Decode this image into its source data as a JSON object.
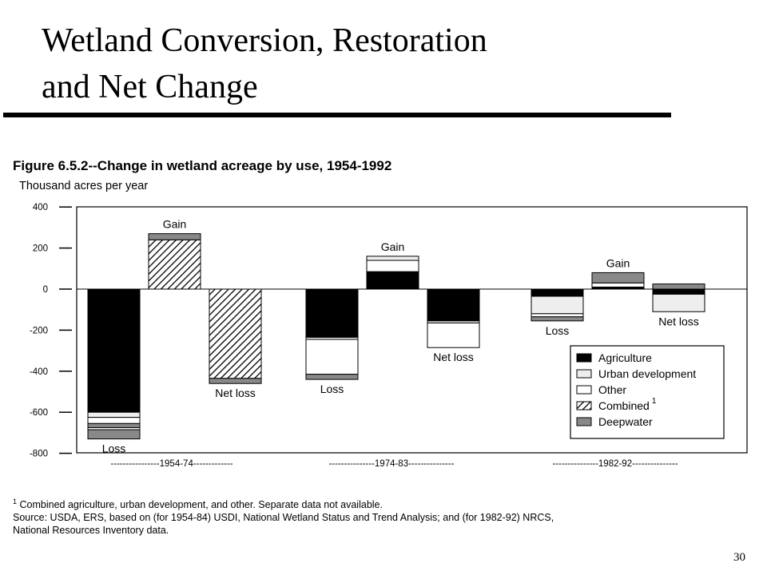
{
  "slide": {
    "title_line1": "Wetland Conversion, Restoration",
    "title_line2": "and Net Change",
    "page_number": "30"
  },
  "figure": {
    "title": "Figure 6.5.2--Change in wetland acreage by use, 1954-1992",
    "unit": "Thousand acres per year",
    "footnote_marker": "1",
    "footnote_text": "Combined agriculture, urban development, and other.  Separate data not available.",
    "source_line1": "Source:  USDA, ERS, based on (for 1954-84) USDI, National Wetland Status and Trend Analysis; and (for 1982-92) NRCS,",
    "source_line2": "National Resources Inventory data."
  },
  "chart_data": {
    "type": "bar",
    "stacked": true,
    "title": "Figure 6.5.2--Change in wetland acreage by use, 1954-1992",
    "ylabel": "Thousand acres per year",
    "ylim": [
      -800,
      400
    ],
    "yticks": [
      400,
      200,
      0,
      -200,
      -400,
      -600,
      -800
    ],
    "grid": false,
    "legend_position": "bottom-right",
    "legend": [
      {
        "key": "agriculture",
        "label": "Agriculture",
        "fill": "#000000",
        "pattern": "solid"
      },
      {
        "key": "urban",
        "label": "Urban development",
        "fill": "#eeeeee",
        "pattern": "solid"
      },
      {
        "key": "other",
        "label": "Other",
        "fill": "#ffffff",
        "pattern": "solid"
      },
      {
        "key": "combined",
        "label": "Combined",
        "superscript": "1",
        "fill": "#ffffff",
        "pattern": "hatch"
      },
      {
        "key": "deepwater",
        "label": "Deepwater",
        "fill": "#888888",
        "pattern": "solid"
      }
    ],
    "groups": [
      {
        "period": "1954-74",
        "axis_label": "----------------1954-74-------------",
        "bars": [
          {
            "label": "Loss",
            "label_position": "below",
            "segments": [
              {
                "key": "agriculture",
                "value": -600
              },
              {
                "key": "urban",
                "value": -25
              },
              {
                "key": "other",
                "value": -30
              },
              {
                "key": "deepwater",
                "value": -20
              },
              {
                "key": "other",
                "value": -10
              },
              {
                "key": "deepwater",
                "value": -45
              }
            ]
          },
          {
            "label": "Gain",
            "label_position": "above",
            "segments": [
              {
                "key": "combined",
                "value": 240
              },
              {
                "key": "deepwater",
                "value": 30
              }
            ]
          },
          {
            "label": "Net loss",
            "label_position": "below",
            "segments": [
              {
                "key": "combined",
                "value": -435
              },
              {
                "key": "deepwater",
                "value": -25
              }
            ]
          }
        ]
      },
      {
        "period": "1974-83",
        "axis_label": "---------------1974-83---------------",
        "bars": [
          {
            "label": "Loss",
            "label_position": "below",
            "segments": [
              {
                "key": "agriculture",
                "value": -235
              },
              {
                "key": "urban",
                "value": -10
              },
              {
                "key": "other",
                "value": -170
              },
              {
                "key": "deepwater",
                "value": -25
              }
            ]
          },
          {
            "label": "Gain",
            "label_position": "above",
            "segments": [
              {
                "key": "agriculture",
                "value": 85
              },
              {
                "key": "other",
                "value": 55
              },
              {
                "key": "urban",
                "value": 20
              }
            ]
          },
          {
            "label": "Net loss",
            "label_position": "below",
            "segments": [
              {
                "key": "agriculture",
                "value": -155
              },
              {
                "key": "urban",
                "value": -10
              },
              {
                "key": "other",
                "value": -120
              }
            ]
          }
        ]
      },
      {
        "period": "1982-92",
        "axis_label": "---------------1982-92---------------",
        "bars": [
          {
            "label": "Loss",
            "label_position": "below",
            "segments": [
              {
                "key": "agriculture",
                "value": -35
              },
              {
                "key": "urban",
                "value": -85
              },
              {
                "key": "other",
                "value": -15
              },
              {
                "key": "deepwater",
                "value": -20
              }
            ]
          },
          {
            "label": "Gain",
            "label_position": "above",
            "segments": [
              {
                "key": "agriculture",
                "value": 10
              },
              {
                "key": "other",
                "value": 20
              },
              {
                "key": "deepwater",
                "value": 50
              }
            ]
          },
          {
            "label": "Net loss",
            "label_position": "below",
            "segments": [
              {
                "key": "agriculture",
                "value": -25
              },
              {
                "key": "urban",
                "value": -85
              },
              {
                "key": "deepwater",
                "value": 25
              }
            ]
          }
        ]
      }
    ]
  }
}
